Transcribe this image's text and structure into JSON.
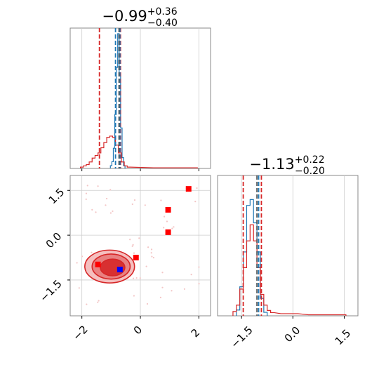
{
  "chart_data": {
    "type": "corner",
    "panels": [
      {
        "id": "p1-marginal",
        "type": "histogram",
        "title": {
          "value": "−0.99",
          "plus": "+0.36",
          "minus": "−0.40"
        },
        "xlim": [
          -2.4,
          2.4
        ],
        "grid": true,
        "series": [
          {
            "color": "#1f77b4",
            "bins_x": [
              -1.0,
              -0.95,
              -0.9,
              -0.85,
              -0.8,
              -0.75,
              -0.7,
              -0.65,
              -0.6,
              -0.55
            ],
            "counts": [
              0.02,
              0.05,
              0.15,
              0.4,
              0.75,
              1.0,
              0.7,
              0.3,
              0.08,
              0.02
            ]
          },
          {
            "color": "#d62728",
            "bins_x": [
              -2.0,
              -1.9,
              -1.8,
              -1.7,
              -1.6,
              -1.5,
              -1.4,
              -1.3,
              -1.2,
              -1.1,
              -1.0,
              -0.9,
              -0.8,
              -0.7,
              -0.6,
              -0.5,
              -0.4,
              0.5,
              0.8,
              1.2,
              1.6,
              1.9
            ],
            "counts": [
              0.01,
              0.02,
              0.03,
              0.05,
              0.08,
              0.1,
              0.12,
              0.16,
              0.2,
              0.24,
              0.25,
              0.24,
              0.18,
              0.12,
              0.05,
              0.02,
              0.01,
              0.005,
              0.005,
              0.005,
              0.005,
              0.005
            ]
          }
        ],
        "vlines": [
          {
            "x": -1.4,
            "color": "#d62728"
          },
          {
            "x": -0.68,
            "color": "#d62728"
          },
          {
            "x": -0.85,
            "color": "#1f77b4"
          },
          {
            "x": -0.7,
            "color": "#1f77b4"
          },
          {
            "x": -0.73,
            "color": "#555555"
          }
        ]
      },
      {
        "id": "p2-joint",
        "type": "scatter-contour",
        "xlim": [
          -2.4,
          2.4
        ],
        "ylim": [
          -2.7,
          2.0
        ],
        "xticks": [
          -2,
          0,
          2
        ],
        "yticks": [
          -1.5,
          0.0,
          1.5
        ],
        "xtick_labels": [
          "−2",
          "0",
          "2"
        ],
        "ytick_labels": [
          "−1.5",
          "0.0",
          "1.5"
        ],
        "grid": true,
        "markers": [
          {
            "x": 1.65,
            "y": 1.55,
            "color": "#ff0000"
          },
          {
            "x": 0.95,
            "y": 0.85,
            "color": "#ff0000"
          },
          {
            "x": 0.95,
            "y": 0.1,
            "color": "#ff0000"
          },
          {
            "x": -0.15,
            "y": -0.75,
            "color": "#ff0000"
          },
          {
            "x": -1.45,
            "y": -0.98,
            "color": "#ff0000"
          },
          {
            "x": -0.7,
            "y": -1.15,
            "color": "#0000ff"
          }
        ],
        "contours": [
          {
            "cx": -1.05,
            "cy": -1.05,
            "rx": 0.85,
            "ry": 0.55,
            "fill": "#f4b8b8"
          },
          {
            "cx": -1.0,
            "cy": -1.05,
            "rx": 0.65,
            "ry": 0.42,
            "fill": "#e87a7a"
          },
          {
            "cx": -0.95,
            "cy": -1.08,
            "rx": 0.42,
            "ry": 0.28,
            "fill": "#d62728"
          }
        ]
      },
      {
        "id": "p3-marginal",
        "type": "histogram",
        "title": {
          "value": "−1.13",
          "plus": "+0.22",
          "minus": "−0.20"
        },
        "xlim": [
          -2.2,
          1.9
        ],
        "xticks": [
          -1.5,
          0.0,
          1.5
        ],
        "xtick_labels": [
          "−1.5",
          "0.0",
          "1.5"
        ],
        "grid": true,
        "series": [
          {
            "color": "#1f77b4",
            "bins_x": [
              -1.6,
              -1.5,
              -1.4,
              -1.3,
              -1.2,
              -1.1,
              -1.0,
              -0.9,
              -0.8
            ],
            "counts": [
              0.05,
              0.25,
              0.55,
              0.95,
              1.0,
              0.8,
              0.55,
              0.15,
              0.03
            ]
          },
          {
            "color": "#d62728",
            "bins_x": [
              -1.7,
              -1.6,
              -1.5,
              -1.4,
              -1.3,
              -1.2,
              -1.1,
              -1.0,
              -0.9,
              -0.8,
              -0.7,
              -0.6,
              -0.3,
              0.1,
              0.5,
              1.0,
              1.5
            ],
            "counts": [
              0.04,
              0.1,
              0.25,
              0.45,
              0.7,
              0.85,
              0.7,
              0.45,
              0.2,
              0.1,
              0.05,
              0.03,
              0.02,
              0.02,
              0.01,
              0.01,
              0.01
            ]
          }
        ],
        "vlines": [
          {
            "x": -1.45,
            "color": "#d62728"
          },
          {
            "x": -0.92,
            "color": "#d62728"
          },
          {
            "x": -1.0,
            "color": "#1f77b4"
          },
          {
            "x": -1.05,
            "color": "#555555"
          }
        ]
      }
    ]
  }
}
